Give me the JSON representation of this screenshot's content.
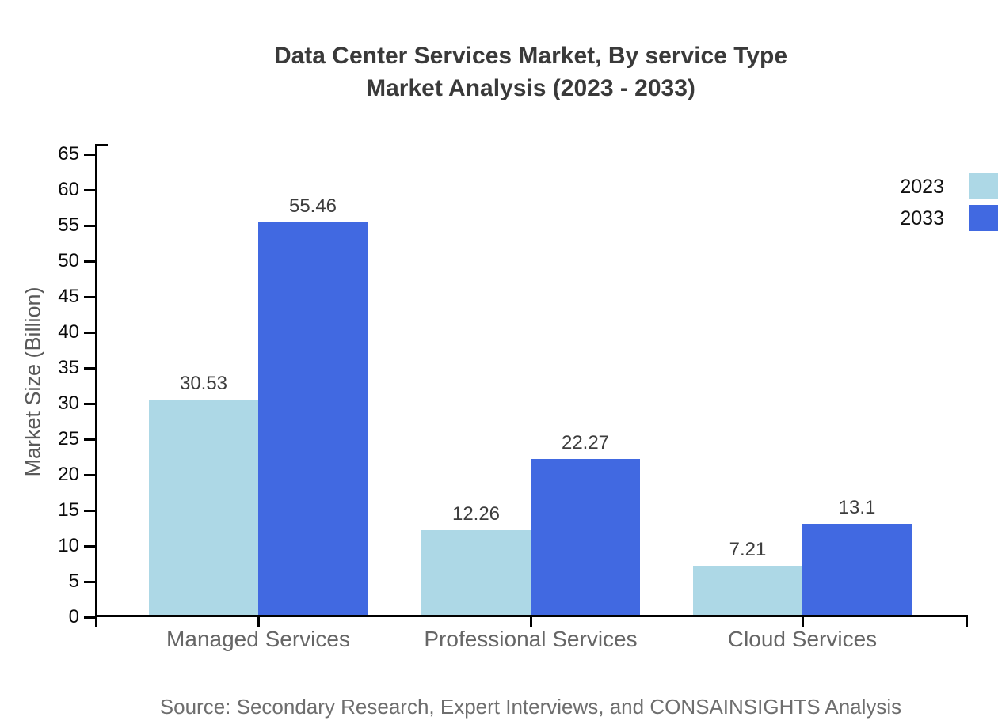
{
  "title": {
    "line1": "Data Center Services Market, By service Type",
    "line2": "Market Analysis (2023 - 2033)"
  },
  "chart_data": {
    "type": "bar",
    "title": "Data Center Services Market, By service Type Market Analysis (2023 - 2033)",
    "categories": [
      "Managed Services",
      "Professional Services",
      "Cloud Services"
    ],
    "series": [
      {
        "name": "2023",
        "color": "#ADD8E6",
        "values": [
          30.53,
          12.26,
          7.21
        ]
      },
      {
        "name": "2033",
        "color": "#4169E1",
        "values": [
          55.46,
          22.27,
          13.1
        ]
      }
    ],
    "xlabel": "",
    "ylabel": "Market Size (Billion)",
    "ylim": [
      0,
      65
    ],
    "ytick_step": 5,
    "grid": false,
    "legend_position": "top-right",
    "value_label_color": "#3d3d3d",
    "axis_color": "#000000"
  },
  "source": "Source: Secondary Research, Expert Interviews, and CONSAINSIGHTS Analysis"
}
